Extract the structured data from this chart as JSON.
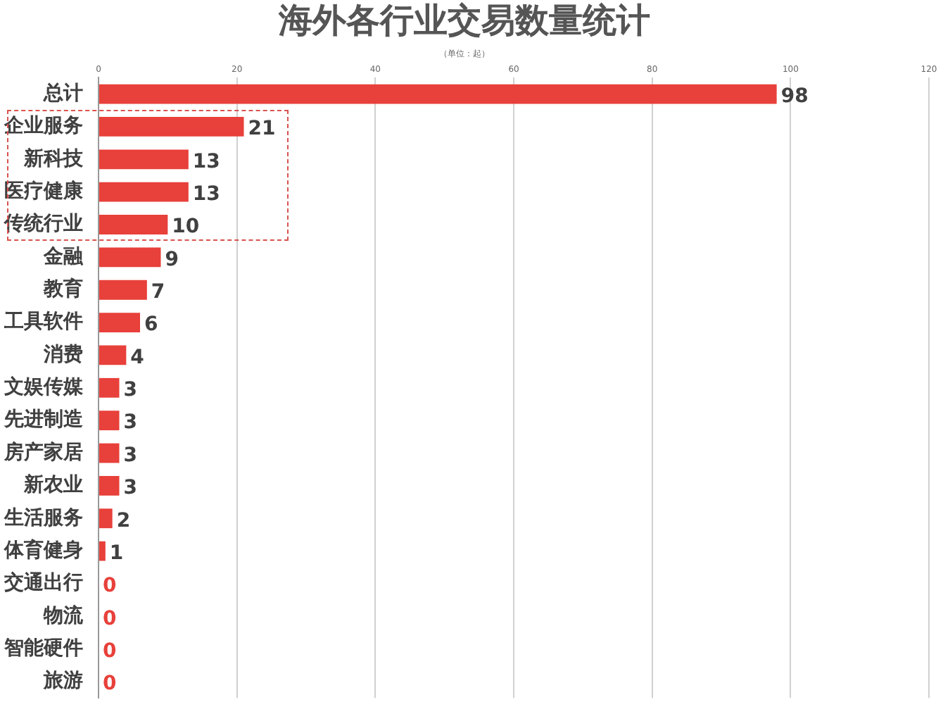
{
  "chart_data": {
    "type": "bar",
    "orientation": "horizontal",
    "title": "海外各行业交易数量统计",
    "subtitle": "（单位：起）",
    "categories": [
      "总计",
      "企业服务",
      "新科技",
      "医疗健康",
      "传统行业",
      "金融",
      "教育",
      "工具软件",
      "消费",
      "文娱传媒",
      "先进制造",
      "房产家居",
      "新农业",
      "生活服务",
      "体育健身",
      "交通出行",
      "物流",
      "智能硬件",
      "旅游"
    ],
    "values": [
      98,
      21,
      13,
      13,
      10,
      9,
      7,
      6,
      4,
      3,
      3,
      3,
      3,
      2,
      1,
      0,
      0,
      0,
      0
    ],
    "color": "#e8403a",
    "xlim": [
      0,
      120
    ],
    "xticks": [
      0,
      20,
      40,
      60,
      80,
      100,
      120
    ],
    "grid": "x",
    "legend": false,
    "data_labels": true
  }
}
